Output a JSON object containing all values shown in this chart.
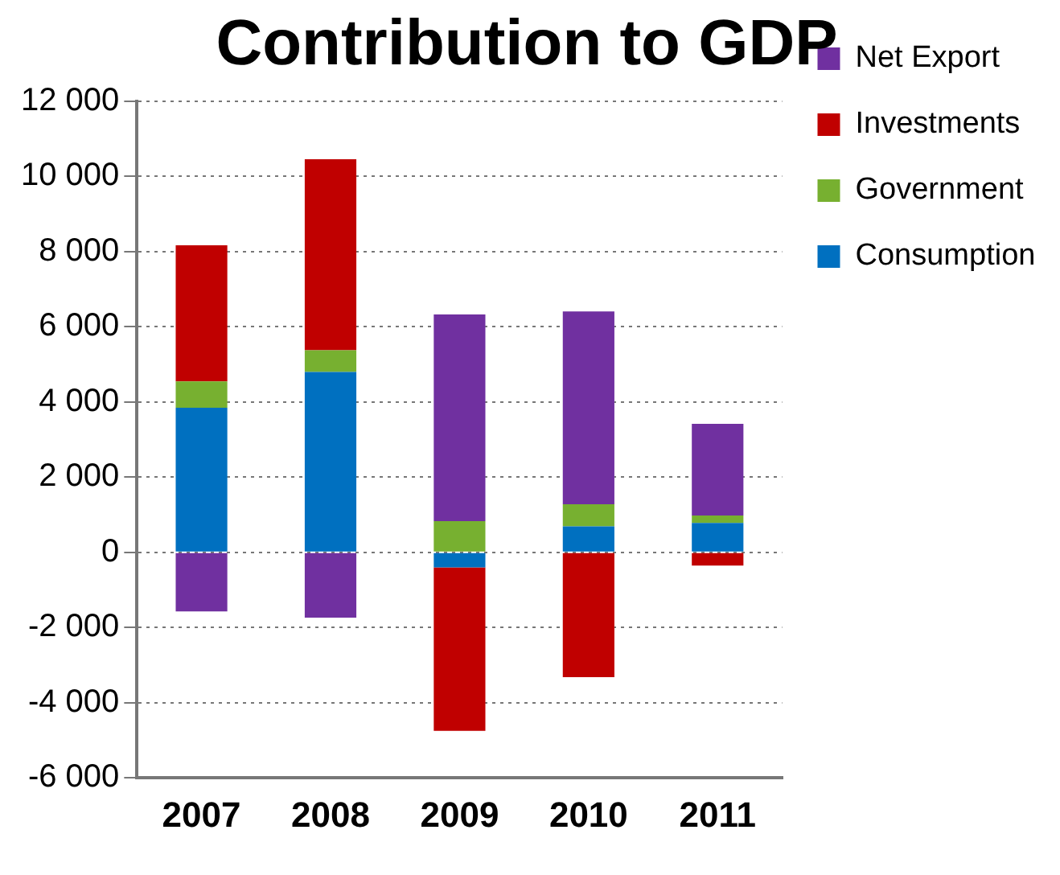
{
  "chart_data": {
    "type": "bar",
    "title": "Contribution to GDP",
    "stacked": true,
    "categories": [
      "2007",
      "2008",
      "2009",
      "2010",
      "2011"
    ],
    "series": [
      {
        "name": "Consumption",
        "color": "#0070c0",
        "values": [
          3850,
          4800,
          -400,
          690,
          780
        ]
      },
      {
        "name": "Government",
        "color": "#77b030",
        "values": [
          700,
          580,
          830,
          590,
          200
        ]
      },
      {
        "name": "Investments",
        "color": "#c00000",
        "values": [
          3620,
          5080,
          -4350,
          -3320,
          -350
        ]
      },
      {
        "name": "Net Export",
        "color": "#7030a0",
        "values": [
          -1570,
          -1740,
          5500,
          5130,
          2440
        ]
      }
    ],
    "ylim": [
      -6000,
      12000
    ],
    "yticks": [
      {
        "value": -6000,
        "label": "-6 000"
      },
      {
        "value": -4000,
        "label": "-4 000"
      },
      {
        "value": -2000,
        "label": "-2 000"
      },
      0,
      {
        "value": 2000,
        "label": "2 000"
      },
      {
        "value": 4000,
        "label": "4 000"
      },
      {
        "value": 6000,
        "label": "6 000"
      },
      {
        "value": 8000,
        "label": "8 000"
      },
      {
        "value": 10000,
        "label": "10 000"
      },
      {
        "value": 12000,
        "label": "12 000"
      }
    ],
    "grid": "y",
    "legend": "right"
  }
}
